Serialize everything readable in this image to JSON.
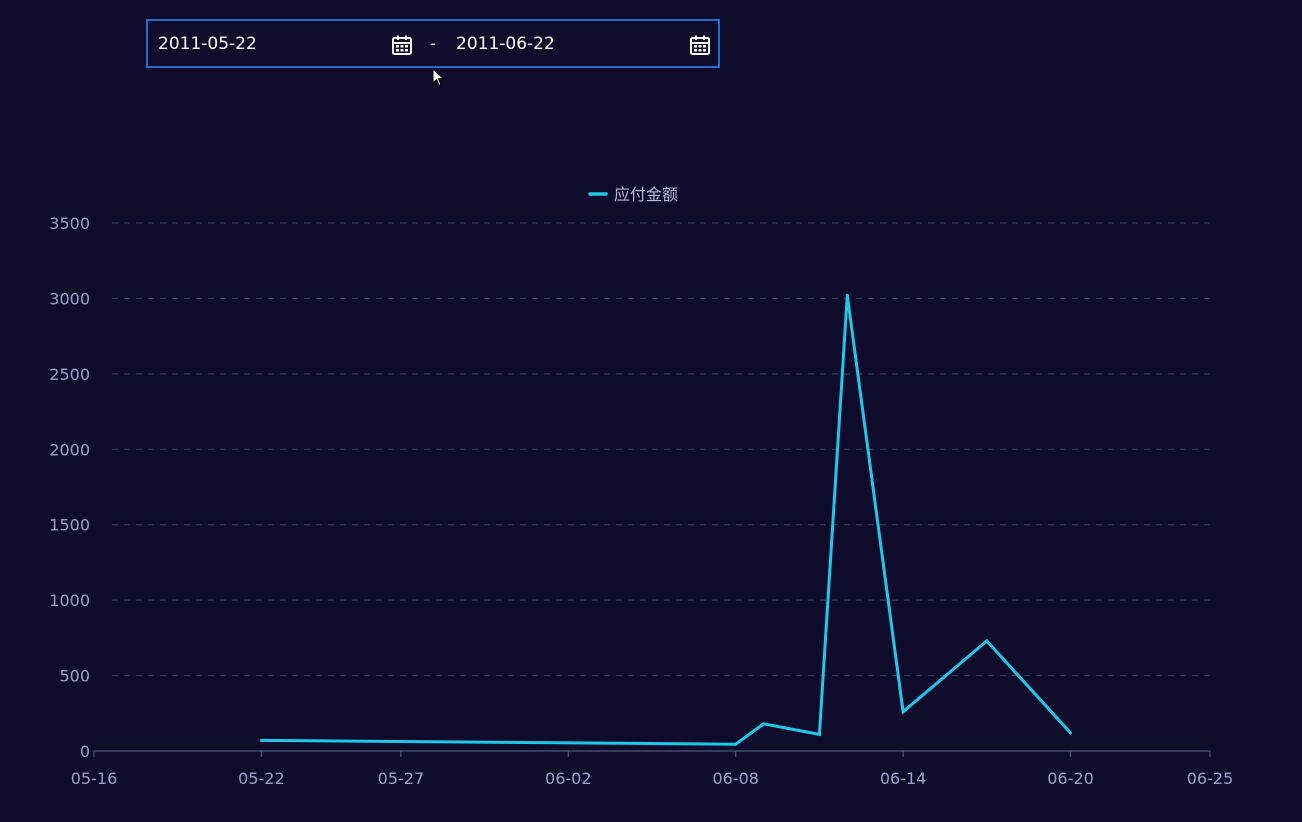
{
  "date_range": {
    "start": "2011-05-22",
    "separator": "-",
    "end": "2011-06-22",
    "start_icon": "calendar-icon",
    "end_icon": "calendar-icon"
  },
  "colors": {
    "background": "#0f0b2a",
    "line": "#1fc8e8",
    "grid": "#2c3f63",
    "border": "#1f6fd1"
  },
  "chart_data": {
    "type": "line",
    "title": "",
    "xlabel": "",
    "ylabel": "",
    "legend": {
      "position": "top-center",
      "entries": [
        "应付金额"
      ]
    },
    "grid": {
      "horizontal": true,
      "style": "dashed"
    },
    "ylim": [
      0,
      3500
    ],
    "yticks": [
      0,
      500,
      1000,
      1500,
      2000,
      2500,
      3000,
      3500
    ],
    "xlim": [
      "2011-05-16",
      "2011-06-25"
    ],
    "xticks": [
      "05-16",
      "05-22",
      "05-27",
      "06-02",
      "06-08",
      "06-14",
      "06-20",
      "06-25"
    ],
    "xtick_dates": [
      "2011-05-16",
      "2011-05-22",
      "2011-05-27",
      "2011-06-02",
      "2011-06-08",
      "2011-06-14",
      "2011-06-20",
      "2011-06-25"
    ],
    "series": [
      {
        "name": "应付金额",
        "x": [
          "2011-05-22",
          "2011-06-08",
          "2011-06-09",
          "2011-06-11",
          "2011-06-12",
          "2011-06-14",
          "2011-06-17",
          "2011-06-20"
        ],
        "y": [
          70,
          45,
          180,
          110,
          3020,
          260,
          730,
          120
        ]
      }
    ]
  }
}
